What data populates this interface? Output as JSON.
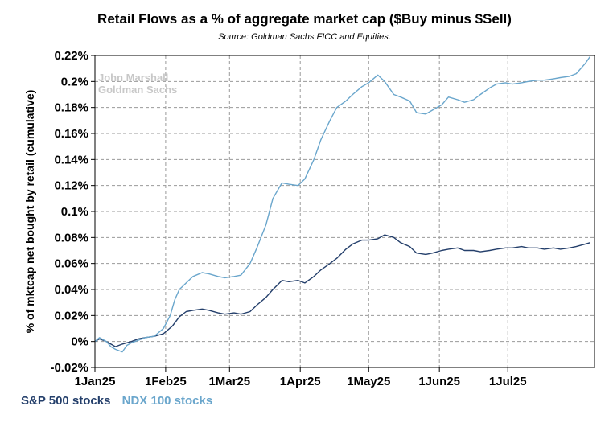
{
  "chart_data": {
    "type": "line",
    "title": "Retail Flows as a % of aggregate market cap ($Buy minus $Sell)",
    "subtitle": "Source: Goldman Sachs FICC and Equities.",
    "ylabel": "% of mktcap net bought by retail (cumulative)",
    "xlabel": "",
    "watermark": [
      "John Marshall",
      "Goldman Sachs"
    ],
    "ylim": [
      -0.02,
      0.22
    ],
    "yticks": [
      -0.02,
      0,
      0.02,
      0.04,
      0.06,
      0.08,
      0.1,
      0.12,
      0.14,
      0.16,
      0.18,
      0.2,
      0.22
    ],
    "ytick_labels": [
      "-0.02%",
      "0%",
      "0.02%",
      "0.04%",
      "0.06%",
      "0.08%",
      "0.1%",
      "0.12%",
      "0.14%",
      "0.16%",
      "0.18%",
      "0.2%",
      "0.22%"
    ],
    "xlim": [
      "2025-01-01",
      "2025-08-08"
    ],
    "xticks": [
      "2025-01-01",
      "2025-02-01",
      "2025-03-01",
      "2025-04-01",
      "2025-05-01",
      "2025-06-01",
      "2025-07-01"
    ],
    "xtick_labels": [
      "1Jan25",
      "1Feb25",
      "1Mar25",
      "1Apr25",
      "1May25",
      "1Jun25",
      "1Jul25"
    ],
    "grid": true,
    "legend_position": "bottom-left",
    "series": [
      {
        "name": "S&P 500 stocks",
        "color": "#243f6b",
        "points": [
          [
            "2025-01-01",
            0.0
          ],
          [
            "2025-01-03",
            0.002
          ],
          [
            "2025-01-06",
            0.0
          ],
          [
            "2025-01-08",
            -0.002
          ],
          [
            "2025-01-10",
            -0.004
          ],
          [
            "2025-01-13",
            -0.002
          ],
          [
            "2025-01-15",
            -0.001
          ],
          [
            "2025-01-17",
            0.0
          ],
          [
            "2025-01-20",
            0.002
          ],
          [
            "2025-01-23",
            0.003
          ],
          [
            "2025-01-27",
            0.004
          ],
          [
            "2025-01-31",
            0.006
          ],
          [
            "2025-02-04",
            0.012
          ],
          [
            "2025-02-07",
            0.019
          ],
          [
            "2025-02-10",
            0.023
          ],
          [
            "2025-02-13",
            0.024
          ],
          [
            "2025-02-17",
            0.025
          ],
          [
            "2025-02-20",
            0.024
          ],
          [
            "2025-02-24",
            0.022
          ],
          [
            "2025-02-27",
            0.021
          ],
          [
            "2025-03-03",
            0.022
          ],
          [
            "2025-03-06",
            0.021
          ],
          [
            "2025-03-10",
            0.023
          ],
          [
            "2025-03-13",
            0.028
          ],
          [
            "2025-03-17",
            0.034
          ],
          [
            "2025-03-20",
            0.04
          ],
          [
            "2025-03-24",
            0.047
          ],
          [
            "2025-03-27",
            0.046
          ],
          [
            "2025-03-31",
            0.047
          ],
          [
            "2025-04-03",
            0.045
          ],
          [
            "2025-04-07",
            0.05
          ],
          [
            "2025-04-10",
            0.055
          ],
          [
            "2025-04-14",
            0.06
          ],
          [
            "2025-04-17",
            0.064
          ],
          [
            "2025-04-21",
            0.071
          ],
          [
            "2025-04-24",
            0.075
          ],
          [
            "2025-04-28",
            0.078
          ],
          [
            "2025-05-01",
            0.078
          ],
          [
            "2025-05-05",
            0.079
          ],
          [
            "2025-05-08",
            0.082
          ],
          [
            "2025-05-12",
            0.08
          ],
          [
            "2025-05-15",
            0.076
          ],
          [
            "2025-05-19",
            0.073
          ],
          [
            "2025-05-22",
            0.068
          ],
          [
            "2025-05-26",
            0.067
          ],
          [
            "2025-05-29",
            0.068
          ],
          [
            "2025-06-02",
            0.07
          ],
          [
            "2025-06-05",
            0.071
          ],
          [
            "2025-06-09",
            0.072
          ],
          [
            "2025-06-12",
            0.07
          ],
          [
            "2025-06-16",
            0.07
          ],
          [
            "2025-06-19",
            0.069
          ],
          [
            "2025-06-23",
            0.07
          ],
          [
            "2025-06-26",
            0.071
          ],
          [
            "2025-06-30",
            0.072
          ],
          [
            "2025-07-03",
            0.072
          ],
          [
            "2025-07-07",
            0.073
          ],
          [
            "2025-07-10",
            0.072
          ],
          [
            "2025-07-14",
            0.072
          ],
          [
            "2025-07-17",
            0.071
          ],
          [
            "2025-07-21",
            0.072
          ],
          [
            "2025-07-24",
            0.071
          ],
          [
            "2025-07-28",
            0.072
          ],
          [
            "2025-07-31",
            0.073
          ],
          [
            "2025-08-04",
            0.075
          ],
          [
            "2025-08-06",
            0.076
          ]
        ]
      },
      {
        "name": "NDX 100 stocks",
        "color": "#6aa6cc",
        "points": [
          [
            "2025-01-01",
            0.0
          ],
          [
            "2025-01-03",
            0.003
          ],
          [
            "2025-01-06",
            0.0
          ],
          [
            "2025-01-08",
            -0.004
          ],
          [
            "2025-01-10",
            -0.006
          ],
          [
            "2025-01-13",
            -0.008
          ],
          [
            "2025-01-15",
            -0.003
          ],
          [
            "2025-01-17",
            -0.001
          ],
          [
            "2025-01-20",
            0.001
          ],
          [
            "2025-01-23",
            0.003
          ],
          [
            "2025-01-27",
            0.004
          ],
          [
            "2025-01-31",
            0.01
          ],
          [
            "2025-02-03",
            0.02
          ],
          [
            "2025-02-05",
            0.032
          ],
          [
            "2025-02-07",
            0.04
          ],
          [
            "2025-02-10",
            0.045
          ],
          [
            "2025-02-13",
            0.05
          ],
          [
            "2025-02-17",
            0.053
          ],
          [
            "2025-02-20",
            0.052
          ],
          [
            "2025-02-24",
            0.05
          ],
          [
            "2025-02-27",
            0.049
          ],
          [
            "2025-03-03",
            0.05
          ],
          [
            "2025-03-06",
            0.051
          ],
          [
            "2025-03-10",
            0.06
          ],
          [
            "2025-03-13",
            0.072
          ],
          [
            "2025-03-17",
            0.09
          ],
          [
            "2025-03-20",
            0.11
          ],
          [
            "2025-03-24",
            0.122
          ],
          [
            "2025-03-27",
            0.121
          ],
          [
            "2025-03-31",
            0.12
          ],
          [
            "2025-04-03",
            0.125
          ],
          [
            "2025-04-07",
            0.14
          ],
          [
            "2025-04-10",
            0.155
          ],
          [
            "2025-04-14",
            0.17
          ],
          [
            "2025-04-17",
            0.18
          ],
          [
            "2025-04-21",
            0.185
          ],
          [
            "2025-04-24",
            0.19
          ],
          [
            "2025-04-28",
            0.196
          ],
          [
            "2025-05-01",
            0.199
          ],
          [
            "2025-05-05",
            0.205
          ],
          [
            "2025-05-08",
            0.2
          ],
          [
            "2025-05-12",
            0.19
          ],
          [
            "2025-05-15",
            0.188
          ],
          [
            "2025-05-19",
            0.185
          ],
          [
            "2025-05-22",
            0.176
          ],
          [
            "2025-05-26",
            0.175
          ],
          [
            "2025-05-29",
            0.178
          ],
          [
            "2025-06-02",
            0.182
          ],
          [
            "2025-06-05",
            0.188
          ],
          [
            "2025-06-09",
            0.186
          ],
          [
            "2025-06-12",
            0.184
          ],
          [
            "2025-06-16",
            0.186
          ],
          [
            "2025-06-19",
            0.19
          ],
          [
            "2025-06-23",
            0.195
          ],
          [
            "2025-06-26",
            0.198
          ],
          [
            "2025-06-30",
            0.199
          ],
          [
            "2025-07-03",
            0.198
          ],
          [
            "2025-07-07",
            0.199
          ],
          [
            "2025-07-10",
            0.2
          ],
          [
            "2025-07-14",
            0.201
          ],
          [
            "2025-07-17",
            0.201
          ],
          [
            "2025-07-21",
            0.202
          ],
          [
            "2025-07-24",
            0.203
          ],
          [
            "2025-07-28",
            0.204
          ],
          [
            "2025-07-31",
            0.206
          ],
          [
            "2025-08-04",
            0.214
          ],
          [
            "2025-08-06",
            0.219
          ]
        ]
      }
    ]
  }
}
